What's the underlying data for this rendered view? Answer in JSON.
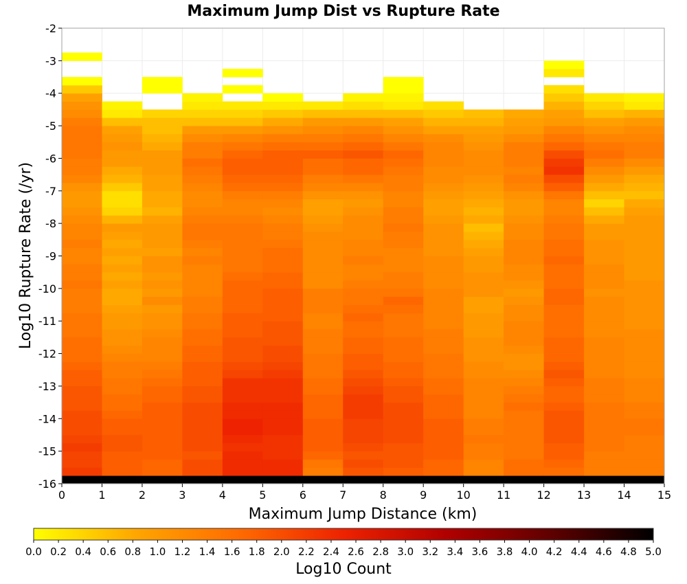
{
  "chart_data": {
    "type": "heatmap",
    "title": "Maximum Jump Dist vs Rupture Rate",
    "xlabel": "Maximum Jump Distance (km)",
    "ylabel": "Log10 Rupture Rate (/yr)",
    "colorbar_label": "Log10 Count",
    "xlim": [
      0,
      15
    ],
    "ylim": [
      -16,
      -2
    ],
    "x_ticks": [
      "0",
      "1",
      "2",
      "3",
      "4",
      "5",
      "6",
      "7",
      "8",
      "9",
      "10",
      "11",
      "12",
      "13",
      "14",
      "15"
    ],
    "y_ticks": [
      "-2",
      "-3",
      "-4",
      "-5",
      "-6",
      "-7",
      "-8",
      "-9",
      "-10",
      "-11",
      "-12",
      "-13",
      "-14",
      "-15",
      "-16"
    ],
    "colorbar_ticks": [
      "0.0",
      "0.2",
      "0.4",
      "0.6",
      "0.8",
      "1.0",
      "1.2",
      "1.4",
      "1.6",
      "1.8",
      "2.0",
      "2.2",
      "2.4",
      "2.6",
      "2.8",
      "3.0",
      "3.2",
      "3.4",
      "3.6",
      "3.8",
      "4.0",
      "4.2",
      "4.4",
      "4.6",
      "4.8",
      "5.0"
    ],
    "colorbar_range": [
      0,
      5
    ],
    "x_bin_width": 1,
    "y_bin_width": 0.25,
    "y_bin_start": -16,
    "colormap": [
      "#ffff00",
      "#ffa500",
      "#ff6a00",
      "#ee2200",
      "#b00000",
      "#600000",
      "#000000"
    ],
    "columns": [
      [
        5.0,
        2.2,
        2.1,
        2.1,
        2.2,
        2.1,
        2.0,
        2.0,
        2.0,
        1.9,
        1.9,
        1.9,
        1.8,
        1.8,
        1.7,
        1.6,
        1.6,
        1.6,
        1.5,
        1.5,
        1.5,
        1.4,
        1.4,
        1.4,
        1.5,
        1.4,
        1.4,
        1.3,
        1.3,
        1.4,
        1.3,
        1.3,
        1.2,
        1.1,
        1.0,
        1.0,
        1.1,
        1.3,
        1.4,
        1.4,
        1.5,
        1.5,
        1.5,
        1.5,
        1.4,
        1.2,
        1.1,
        0.9,
        0.5,
        0.0,
        null,
        null,
        0.0,
        null,
        null,
        null
      ],
      [
        5.0,
        1.8,
        1.8,
        1.8,
        1.9,
        1.9,
        1.8,
        1.8,
        1.7,
        1.6,
        1.6,
        1.5,
        1.5,
        1.4,
        1.4,
        1.3,
        1.2,
        1.1,
        1.1,
        1.0,
        1.0,
        0.9,
        0.8,
        0.8,
        0.9,
        0.8,
        0.9,
        0.8,
        0.9,
        0.8,
        0.9,
        1.0,
        0.7,
        0.4,
        0.3,
        0.3,
        0.5,
        0.7,
        0.8,
        1.0,
        1.0,
        1.1,
        1.0,
        0.9,
        0.6,
        0.2,
        0.1,
        null,
        null,
        null,
        null,
        null,
        null,
        null,
        null,
        null
      ],
      [
        5.0,
        1.7,
        1.7,
        1.8,
        1.8,
        1.8,
        1.8,
        1.8,
        1.8,
        1.8,
        1.7,
        1.7,
        1.6,
        1.5,
        1.4,
        1.3,
        1.3,
        1.3,
        1.2,
        1.1,
        1.1,
        1.0,
        1.2,
        1.0,
        1.1,
        1.0,
        1.1,
        1.1,
        0.9,
        1.0,
        1.0,
        1.0,
        0.9,
        0.7,
        0.8,
        0.8,
        0.9,
        0.9,
        1.0,
        1.0,
        1.0,
        0.8,
        0.7,
        0.6,
        0.6,
        0.4,
        null,
        null,
        0.0,
        0.0,
        null,
        null,
        null,
        null,
        null,
        null
      ],
      [
        5.0,
        2.0,
        2.0,
        1.9,
        2.0,
        2.0,
        2.0,
        2.0,
        2.0,
        2.0,
        1.9,
        1.9,
        1.8,
        1.8,
        1.8,
        1.7,
        1.7,
        1.6,
        1.6,
        1.5,
        1.5,
        1.4,
        1.4,
        1.3,
        1.3,
        1.3,
        1.3,
        1.4,
        1.3,
        1.4,
        1.5,
        1.5,
        1.4,
        1.3,
        1.2,
        1.2,
        1.3,
        1.4,
        1.5,
        1.6,
        1.4,
        1.4,
        1.2,
        1.0,
        0.6,
        0.4,
        0.2,
        0.1,
        null,
        null,
        null,
        null,
        null,
        null,
        null,
        null
      ],
      [
        5.0,
        2.4,
        2.4,
        2.4,
        2.3,
        2.4,
        2.5,
        2.5,
        2.4,
        2.4,
        2.3,
        2.3,
        2.3,
        2.1,
        2.0,
        1.9,
        1.9,
        1.9,
        1.8,
        1.8,
        1.8,
        1.7,
        1.7,
        1.7,
        1.7,
        1.6,
        1.5,
        1.5,
        1.5,
        1.5,
        1.5,
        1.5,
        1.4,
        1.3,
        1.3,
        1.4,
        1.6,
        1.7,
        1.8,
        1.8,
        1.7,
        1.5,
        1.3,
        1.0,
        0.6,
        0.4,
        0.2,
        null,
        0.0,
        null,
        0.0,
        null,
        null,
        null,
        null,
        null
      ],
      [
        5.0,
        2.4,
        2.4,
        2.3,
        2.3,
        2.3,
        2.4,
        2.4,
        2.4,
        2.4,
        2.3,
        2.3,
        2.3,
        2.2,
        2.1,
        2.0,
        2.0,
        1.9,
        1.9,
        1.9,
        1.8,
        1.8,
        1.8,
        1.8,
        1.7,
        1.7,
        1.6,
        1.6,
        1.6,
        1.5,
        1.4,
        1.4,
        1.3,
        1.2,
        1.3,
        1.4,
        1.6,
        1.7,
        1.8,
        1.8,
        1.8,
        1.6,
        1.4,
        1.1,
        0.8,
        0.5,
        0.2,
        0.0,
        null,
        null,
        null,
        null,
        null,
        null,
        null,
        null
      ],
      [
        5.0,
        1.4,
        1.5,
        1.7,
        1.8,
        1.8,
        1.8,
        1.8,
        1.7,
        1.7,
        1.7,
        1.6,
        1.6,
        1.5,
        1.5,
        1.5,
        1.4,
        1.4,
        1.4,
        1.3,
        1.3,
        1.4,
        1.4,
        1.4,
        1.2,
        1.2,
        1.2,
        1.2,
        1.2,
        1.2,
        1.2,
        1.1,
        1.0,
        0.9,
        0.9,
        1.1,
        1.3,
        1.4,
        1.6,
        1.6,
        1.8,
        1.6,
        1.4,
        1.2,
        1.0,
        0.6,
        0.2,
        null,
        null,
        null,
        null,
        null,
        null,
        null,
        null,
        null
      ],
      [
        5.0,
        1.9,
        2.0,
        1.9,
        2.0,
        2.1,
        2.1,
        2.1,
        2.2,
        2.2,
        2.2,
        2.1,
        2.0,
        1.9,
        1.8,
        1.8,
        1.7,
        1.7,
        1.6,
        1.6,
        1.7,
        1.6,
        1.5,
        1.5,
        1.4,
        1.3,
        1.3,
        1.4,
        1.3,
        1.3,
        1.2,
        1.2,
        1.2,
        1.1,
        1.0,
        1.1,
        1.3,
        1.5,
        1.7,
        1.7,
        1.9,
        1.7,
        1.5,
        1.3,
        1.0,
        0.6,
        0.3,
        0.1,
        null,
        null,
        null,
        null,
        null,
        null,
        null,
        null
      ],
      [
        5.0,
        1.8,
        1.9,
        1.9,
        1.9,
        2.0,
        2.0,
        2.0,
        2.0,
        2.0,
        1.9,
        1.9,
        1.8,
        1.7,
        1.7,
        1.6,
        1.6,
        1.6,
        1.5,
        1.5,
        1.5,
        1.6,
        1.7,
        1.5,
        1.4,
        1.4,
        1.3,
        1.3,
        1.3,
        1.4,
        1.4,
        1.5,
        1.4,
        1.4,
        1.3,
        1.3,
        1.4,
        1.4,
        1.5,
        1.6,
        1.7,
        1.5,
        1.3,
        1.1,
        0.9,
        0.6,
        0.2,
        0.1,
        0.0,
        0.0,
        null,
        null,
        null,
        null,
        null,
        null
      ],
      [
        5.0,
        1.7,
        1.7,
        1.8,
        1.8,
        1.8,
        1.8,
        1.8,
        1.7,
        1.7,
        1.7,
        1.6,
        1.6,
        1.5,
        1.5,
        1.5,
        1.4,
        1.4,
        1.4,
        1.3,
        1.3,
        1.3,
        1.3,
        1.3,
        1.2,
        1.2,
        1.2,
        1.2,
        1.1,
        1.1,
        1.1,
        1.1,
        1.0,
        0.9,
        0.9,
        1.0,
        1.1,
        1.2,
        1.2,
        1.3,
        1.3,
        1.3,
        1.2,
        0.9,
        0.7,
        0.5,
        0.3,
        null,
        null,
        null,
        null,
        null,
        null,
        null,
        null,
        null
      ],
      [
        5.0,
        1.3,
        1.3,
        1.4,
        1.4,
        1.5,
        1.4,
        1.4,
        1.3,
        1.3,
        1.3,
        1.3,
        1.3,
        1.2,
        1.2,
        1.1,
        1.1,
        1.1,
        1.0,
        1.0,
        1.0,
        0.9,
        0.9,
        1.1,
        1.1,
        1.1,
        1.0,
        1.0,
        0.9,
        0.8,
        0.7,
        0.6,
        0.8,
        0.7,
        0.8,
        0.9,
        1.0,
        1.1,
        1.2,
        1.2,
        1.2,
        1.1,
        1.0,
        0.9,
        0.7,
        0.6,
        null,
        null,
        null,
        null,
        null,
        null,
        null,
        null,
        null,
        null
      ],
      [
        5.0,
        1.6,
        1.6,
        1.5,
        1.5,
        1.5,
        1.5,
        1.5,
        1.5,
        1.6,
        1.5,
        1.4,
        1.3,
        1.2,
        1.1,
        1.1,
        1.2,
        1.3,
        1.3,
        1.3,
        1.2,
        1.2,
        1.1,
        1.0,
        1.1,
        1.2,
        1.2,
        1.3,
        1.3,
        1.3,
        1.2,
        1.2,
        1.1,
        1.0,
        1.0,
        1.1,
        1.3,
        1.4,
        1.3,
        1.4,
        1.4,
        1.4,
        1.2,
        1.0,
        0.9,
        0.8,
        null,
        null,
        null,
        null,
        null,
        null,
        null,
        null,
        null,
        null
      ],
      [
        5.0,
        1.6,
        1.7,
        1.8,
        1.8,
        1.9,
        1.9,
        1.9,
        1.9,
        1.8,
        1.7,
        1.7,
        1.8,
        1.9,
        1.8,
        1.7,
        1.7,
        1.7,
        1.6,
        1.6,
        1.6,
        1.6,
        1.7,
        1.7,
        1.6,
        1.6,
        1.6,
        1.7,
        1.6,
        1.6,
        1.5,
        1.5,
        1.4,
        1.3,
        1.3,
        1.5,
        1.8,
        2.0,
        2.3,
        2.2,
        2.0,
        1.7,
        1.5,
        1.3,
        1.0,
        0.9,
        0.7,
        0.5,
        0.3,
        null,
        0.2,
        0.0,
        null,
        null,
        null,
        null
      ],
      [
        5.0,
        1.4,
        1.4,
        1.4,
        1.5,
        1.5,
        1.5,
        1.5,
        1.5,
        1.5,
        1.4,
        1.4,
        1.4,
        1.3,
        1.3,
        1.3,
        1.3,
        1.3,
        1.2,
        1.2,
        1.2,
        1.2,
        1.2,
        1.1,
        1.2,
        1.2,
        1.2,
        1.1,
        1.1,
        1.1,
        1.0,
        1.0,
        0.8,
        0.6,
        0.4,
        0.6,
        0.8,
        1.0,
        1.2,
        1.4,
        1.6,
        1.5,
        1.3,
        1.1,
        0.9,
        0.6,
        0.4,
        0.2,
        null,
        null,
        null,
        null,
        null,
        null,
        null,
        null
      ],
      [
        5.0,
        1.4,
        1.4,
        1.4,
        1.4,
        1.4,
        1.5,
        1.5,
        1.4,
        1.4,
        1.3,
        1.3,
        1.3,
        1.2,
        1.2,
        1.2,
        1.2,
        1.2,
        1.2,
        1.1,
        1.1,
        1.1,
        1.1,
        1.1,
        1.1,
        1.0,
        1.0,
        1.0,
        1.0,
        1.0,
        1.0,
        1.0,
        1.0,
        0.9,
        0.8,
        0.6,
        0.7,
        0.8,
        1.0,
        1.2,
        1.4,
        1.4,
        1.3,
        1.2,
        1.0,
        0.7,
        0.2,
        0.1,
        null,
        null,
        null,
        null,
        null,
        null,
        null,
        null
      ]
    ]
  }
}
